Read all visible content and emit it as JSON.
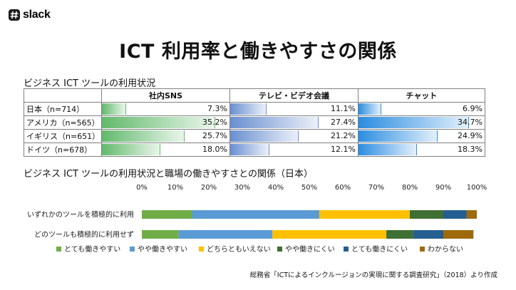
{
  "brand": {
    "name": "slack"
  },
  "title": "ICT 利用率と働きやすさの関係",
  "table_section": {
    "title": "ビジネス ICT ツールの利用状況",
    "columns": [
      "社内SNS",
      "テレビ・ビデオ会議",
      "チャット"
    ],
    "rows": [
      {
        "country": "日本（n=714）",
        "values": [
          "7.3%",
          "11.1%",
          "6.9%"
        ]
      },
      {
        "country": "アメリカ（n=565）",
        "values": [
          "35.2%",
          "27.4%",
          "34.7%"
        ]
      },
      {
        "country": "イギリス（n=651）",
        "values": [
          "25.7%",
          "21.2%",
          "24.9%"
        ]
      },
      {
        "country": "ドイツ（n=678）",
        "values": [
          "18.0%",
          "12.1%",
          "18.3%"
        ]
      }
    ],
    "fill_colors": [
      "#62b96c",
      "#6a8fd0",
      "#2b8de0"
    ]
  },
  "chart_section": {
    "title": "ビジネス ICT ツールの利用状況と職場の働きやすさとの関係（日本）"
  },
  "chart_data": {
    "type": "bar",
    "orientation": "horizontal",
    "stacked": true,
    "categories": [
      "いずれかのツールを積極的に利用",
      "どのツールも積極的に利用せず"
    ],
    "series": [
      {
        "name": "とても働きやすい",
        "color": "#70ad47",
        "values": [
          15,
          11
        ]
      },
      {
        "name": "やや働きやすい",
        "color": "#5b9bd5",
        "values": [
          38,
          28
        ]
      },
      {
        "name": "どちらともいえない",
        "color": "#ffc000",
        "values": [
          27,
          34
        ]
      },
      {
        "name": "やや働きにくい",
        "color": "#3f6f32",
        "values": [
          10,
          8
        ]
      },
      {
        "name": "とても働きにくい",
        "color": "#255e91",
        "values": [
          7,
          9
        ]
      },
      {
        "name": "わからない",
        "color": "#9e6a0c",
        "values": [
          3,
          9
        ]
      }
    ],
    "xlim": [
      0,
      100
    ],
    "x_ticks": [
      "0%",
      "10%",
      "20%",
      "30%",
      "40%",
      "50%",
      "60%",
      "70%",
      "80%",
      "90%",
      "100%"
    ],
    "legend_position": "bottom",
    "grid": false
  },
  "source": "総務省「ICTによるインクルージョンの実現に関する調査研究」（2018）より作成"
}
